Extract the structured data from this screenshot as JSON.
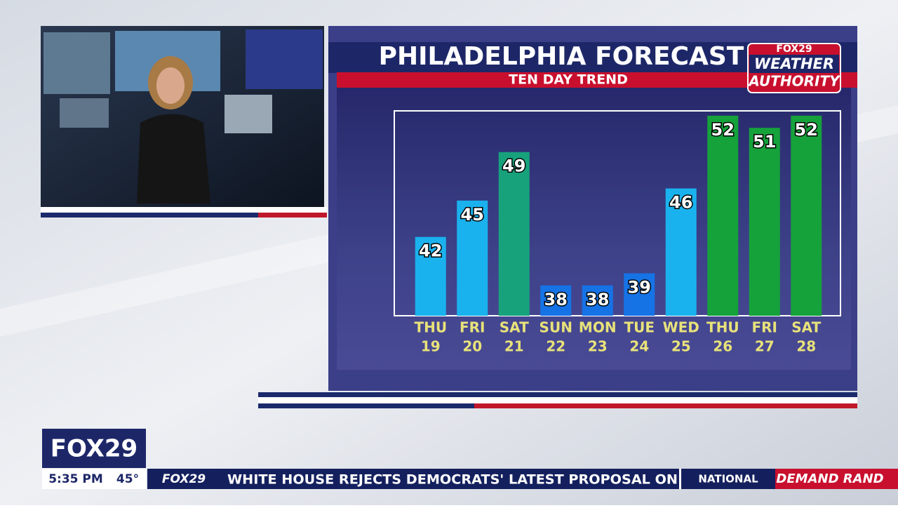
{
  "chart_data": {
    "type": "bar",
    "title": "PHILADELPHIA FORECAST",
    "subtitle": "TEN DAY TREND",
    "categories": [
      [
        "THU",
        "19"
      ],
      [
        "FRI",
        "20"
      ],
      [
        "SAT",
        "21"
      ],
      [
        "SUN",
        "22"
      ],
      [
        "MON",
        "23"
      ],
      [
        "TUE",
        "24"
      ],
      [
        "WED",
        "25"
      ],
      [
        "THU",
        "26"
      ],
      [
        "FRI",
        "27"
      ],
      [
        "SAT",
        "28"
      ]
    ],
    "values": [
      42,
      45,
      49,
      38,
      38,
      39,
      46,
      52,
      51,
      52
    ],
    "colors": [
      "#1ab2ee",
      "#1ab2ee",
      "#17a27c",
      "#1673e6",
      "#1673e6",
      "#1673e6",
      "#1ab2ee",
      "#15a23b",
      "#15a23b",
      "#15a23b"
    ],
    "ylim": [
      35.5,
      52.4
    ]
  },
  "logo": {
    "network": "FOX29",
    "line1": "WEATHER",
    "line2": "AUTHORITY"
  },
  "ticker": {
    "time": "5:35 PM",
    "temperature": "45°",
    "network": "FOX29",
    "headline": "WHITE HOUSE REJECTS DEMOCRATS' LATEST PROPOSAL ON",
    "section": "NATIONAL",
    "promo": "DEMAND RAND"
  }
}
